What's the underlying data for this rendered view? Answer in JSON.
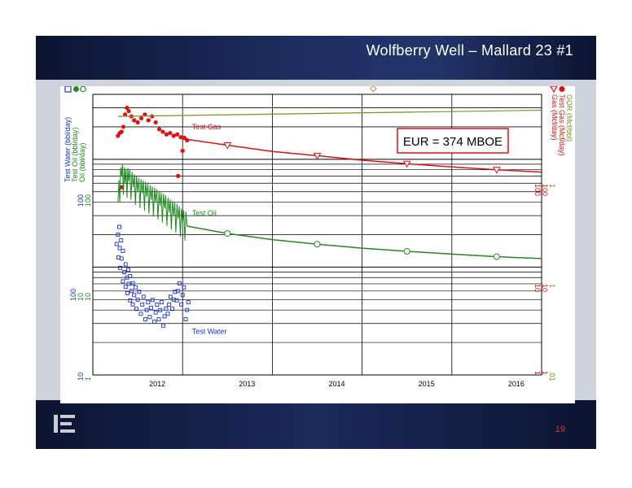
{
  "slide": {
    "title": "Wolfberry Well – Mallard 23 #1",
    "page_number": "19",
    "logo_icon": "company-logo-icon",
    "colors": {
      "header": "#1a2a5a",
      "background": "#cfd3dc",
      "accent": "#e0302a"
    }
  },
  "chart_data": {
    "type": "scatter",
    "x_axis": {
      "type": "date",
      "range": [
        "2011-07-01",
        "2016-12-31"
      ],
      "tick_labels": [
        "2012",
        "2013",
        "2014",
        "2015",
        "2016"
      ],
      "ticks": [
        2012.0,
        2013.0,
        2014.0,
        2015.0,
        2016.0
      ]
    },
    "y_axis_scale": "log",
    "left_axis_labels": [
      "Test Water (bbl/day)",
      "Test Oil (bbl/day)",
      "Oil (bbl/day)"
    ],
    "right_axis_labels": [
      "GOR (Mcf/bbl)",
      "Test Gas (Mcf/day)",
      "Gas (Mcf/day)"
    ],
    "left_tick_groups": [
      {
        "lines": [
          "100",
          "100"
        ]
      },
      {
        "lines": [
          "100",
          "10",
          "10"
        ]
      },
      {
        "lines": [
          "10",
          "1"
        ]
      }
    ],
    "right_tick_groups": [
      {
        "lines": [
          "1",
          "100",
          "100"
        ]
      },
      {
        "lines": [
          "1",
          "10",
          "10"
        ]
      },
      {
        "lines": [
          ".01",
          "1",
          "1"
        ]
      }
    ],
    "annotation_box": "EUR = 374 MBOE",
    "series": [
      {
        "name": "Test Gas",
        "color": "#e01010",
        "marker": "circle-filled",
        "points": [
          [
            2011.78,
            165
          ],
          [
            2011.8,
            175
          ],
          [
            2011.82,
            180
          ],
          [
            2011.84,
            200
          ],
          [
            2011.86,
            260
          ],
          [
            2011.88,
            300
          ],
          [
            2011.9,
            280
          ],
          [
            2011.93,
            250
          ],
          [
            2011.96,
            230
          ],
          [
            2012.0,
            220
          ],
          [
            2012.04,
            240
          ],
          [
            2012.08,
            260
          ],
          [
            2012.12,
            230
          ],
          [
            2012.16,
            250
          ],
          [
            2012.2,
            220
          ],
          [
            2012.24,
            190
          ],
          [
            2012.28,
            180
          ],
          [
            2012.32,
            170
          ],
          [
            2012.36,
            175
          ],
          [
            2012.4,
            165
          ],
          [
            2012.44,
            170
          ],
          [
            2012.48,
            160
          ],
          [
            2012.52,
            158
          ],
          [
            2012.55,
            150
          ],
          [
            2012.5,
            120
          ],
          [
            2012.45,
            70
          ],
          [
            2011.82,
            55
          ]
        ]
      },
      {
        "name": "Gas forecast",
        "color": "#e01010",
        "marker": "triangle-open",
        "points": [
          [
            2012.5,
            155
          ],
          [
            2013.0,
            135
          ],
          [
            2013.5,
            118
          ],
          [
            2014.0,
            108
          ],
          [
            2014.5,
            98
          ],
          [
            2015.0,
            91
          ],
          [
            2015.5,
            85
          ],
          [
            2016.0,
            80
          ],
          [
            2016.5,
            76
          ]
        ],
        "marker_points": [
          [
            2013.0,
            135
          ],
          [
            2014.0,
            108
          ],
          [
            2015.0,
            91
          ],
          [
            2016.0,
            80
          ]
        ]
      },
      {
        "name": "GOR",
        "color": "#8a8a18",
        "marker": "diamond-open",
        "points": [
          [
            2011.78,
            250
          ],
          [
            2016.5,
            285
          ]
        ]
      },
      {
        "name": "Test Oil",
        "color": "#1f8a1f",
        "marker": "line",
        "points": [
          [
            2011.78,
            40
          ],
          [
            2011.82,
            70
          ],
          [
            2011.86,
            60
          ],
          [
            2011.9,
            62
          ],
          [
            2011.95,
            55
          ],
          [
            2012.0,
            50
          ],
          [
            2012.05,
            48
          ],
          [
            2012.1,
            45
          ],
          [
            2012.15,
            42
          ],
          [
            2012.2,
            40
          ],
          [
            2012.25,
            37
          ],
          [
            2012.3,
            35
          ],
          [
            2012.35,
            32
          ],
          [
            2012.4,
            30
          ],
          [
            2012.45,
            28
          ],
          [
            2012.5,
            25
          ],
          [
            2012.55,
            24
          ]
        ]
      },
      {
        "name": "Oil forecast",
        "color": "#1f8a1f",
        "marker": "circle-open",
        "points": [
          [
            2012.55,
            24
          ],
          [
            2013.0,
            20.5
          ],
          [
            2013.5,
            18
          ],
          [
            2014.0,
            16.3
          ],
          [
            2014.5,
            15
          ],
          [
            2015.0,
            14
          ],
          [
            2015.5,
            13.2
          ],
          [
            2016.0,
            12.5
          ],
          [
            2016.5,
            12
          ]
        ],
        "marker_points": [
          [
            2013.0,
            20.5
          ],
          [
            2014.0,
            16.3
          ],
          [
            2015.0,
            14
          ],
          [
            2016.0,
            12.5
          ]
        ]
      },
      {
        "name": "Test Water",
        "color": "#1a2fd6",
        "marker": "square-open",
        "points": [
          [
            2011.78,
            20
          ],
          [
            2011.8,
            15
          ],
          [
            2011.82,
            12
          ],
          [
            2011.85,
            9
          ],
          [
            2011.88,
            8
          ],
          [
            2011.9,
            7
          ],
          [
            2011.93,
            6
          ],
          [
            2011.96,
            5.5
          ],
          [
            2012.0,
            5
          ],
          [
            2012.05,
            4.5
          ],
          [
            2012.1,
            4
          ],
          [
            2012.15,
            4.2
          ],
          [
            2012.2,
            3.8
          ],
          [
            2012.25,
            4
          ],
          [
            2012.3,
            3.5
          ],
          [
            2012.35,
            4.5
          ],
          [
            2012.4,
            5
          ],
          [
            2012.45,
            6
          ],
          [
            2012.5,
            5.5
          ],
          [
            2012.55,
            4
          ]
        ]
      }
    ],
    "series_labels": [
      {
        "text": "Test Gas",
        "series": "Test Gas"
      },
      {
        "text": "Test Oil",
        "series": "Test Oil"
      },
      {
        "text": "Test Water",
        "series": "Test Water"
      }
    ],
    "grid": true
  }
}
